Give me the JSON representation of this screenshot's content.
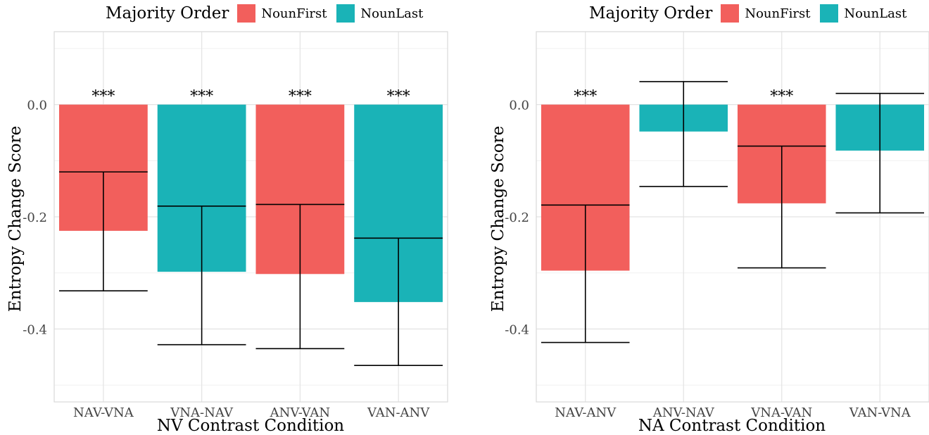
{
  "colors": {
    "NounFirst": "#F25F5C",
    "NounLast": "#1AB3B7"
  },
  "chart_data": [
    {
      "type": "bar",
      "legend": {
        "title": "Majority Order",
        "entries": [
          "NounFirst",
          "NounLast"
        ]
      },
      "xlabel": "NV Contrast Condition",
      "ylabel": "Entropy Change Score",
      "categories": [
        "NAV-VNA",
        "VNA-NAV",
        "ANV-VAN",
        "VAN-ANV"
      ],
      "majority": [
        "NounFirst",
        "NounLast",
        "NounFirst",
        "NounLast"
      ],
      "values": [
        -0.225,
        -0.298,
        -0.302,
        -0.352
      ],
      "error_bars": [
        [
          -0.332,
          -0.12
        ],
        [
          -0.428,
          -0.181
        ],
        [
          -0.435,
          -0.178
        ],
        [
          -0.465,
          -0.238
        ]
      ],
      "significance": [
        "***",
        "***",
        "***",
        "***"
      ],
      "ylim": [
        -0.53,
        0.13
      ],
      "yticks": [
        "0.0",
        "-0.2",
        "-0.4"
      ],
      "ytick_values": [
        0.0,
        -0.2,
        -0.4
      ]
    },
    {
      "type": "bar",
      "legend": {
        "title": "Majority Order",
        "entries": [
          "NounFirst",
          "NounLast"
        ]
      },
      "xlabel": "NA Contrast Condition",
      "ylabel": "Entropy Change Score",
      "categories": [
        "NAV-ANV",
        "ANV-NAV",
        "VNA-VAN",
        "VAN-VNA"
      ],
      "majority": [
        "NounFirst",
        "NounLast",
        "NounFirst",
        "NounLast"
      ],
      "values": [
        -0.296,
        -0.048,
        -0.176,
        -0.082
      ],
      "error_bars": [
        [
          -0.424,
          -0.179
        ],
        [
          -0.146,
          0.041
        ],
        [
          -0.291,
          -0.074
        ],
        [
          -0.193,
          0.02
        ]
      ],
      "significance": [
        "***",
        "",
        "***",
        ""
      ],
      "ylim": [
        -0.53,
        0.13
      ],
      "yticks": [
        "0.0",
        "-0.2",
        "-0.4"
      ],
      "ytick_values": [
        0.0,
        -0.2,
        -0.4
      ]
    }
  ]
}
